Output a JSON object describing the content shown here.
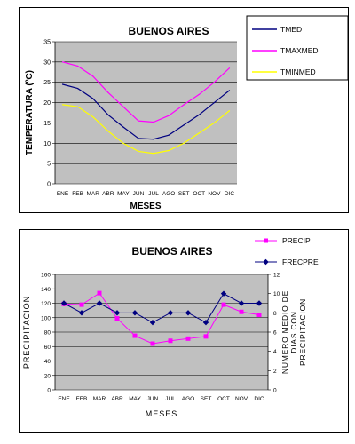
{
  "chart_data": [
    {
      "type": "line",
      "title": "BUENOS AIRES",
      "xlabel": "MESES",
      "ylabel": "TEMPERATURA (ºC)",
      "categories": [
        "ENE",
        "FEB",
        "MAR",
        "ABR",
        "MAY",
        "JUN",
        "JUL",
        "AGO",
        "SET",
        "OCT",
        "NOV",
        "DIC"
      ],
      "ylim": [
        0,
        35
      ],
      "yticks": [
        "0",
        "5",
        "10",
        "15",
        "20",
        "25",
        "30",
        "35"
      ],
      "grid": true,
      "legend_position": "right-top",
      "series": [
        {
          "name": "TMED",
          "color": "#000080",
          "values": [
            24.5,
            23.5,
            21,
            17,
            14,
            11.2,
            11,
            12,
            14.5,
            17,
            20,
            23
          ]
        },
        {
          "name": "TMAXMED",
          "color": "#ff00ff",
          "values": [
            30,
            29,
            26.5,
            22.5,
            19,
            15.5,
            15.2,
            16.8,
            19.5,
            22,
            25,
            28.5
          ]
        },
        {
          "name": "TMINMED",
          "color": "#ffff00",
          "values": [
            19.5,
            19,
            16.5,
            13,
            10,
            8,
            7.5,
            8.2,
            10,
            12.5,
            15,
            18
          ]
        }
      ]
    },
    {
      "type": "line",
      "title": "BUENOS AIRES",
      "xlabel": "MESES",
      "ylabel": "PRECIPITACION",
      "y2label": "NUMERO MEDIO DE DIAS CON PRECIPITACION",
      "y2label_lines": [
        "NUMERO MEDIO DE",
        "DIAS CON",
        "PRECIPITACION"
      ],
      "categories": [
        "ENE",
        "FEB",
        "MAR",
        "ABR",
        "MAY",
        "JUN",
        "JUL",
        "AGO",
        "SET",
        "OCT",
        "NOV",
        "DIC"
      ],
      "ylim": [
        0,
        160
      ],
      "yticks": [
        "0",
        "20",
        "40",
        "60",
        "80",
        "100",
        "120",
        "140",
        "160"
      ],
      "y2lim": [
        0,
        12
      ],
      "y2ticks": [
        "0",
        "2",
        "4",
        "6",
        "8",
        "10",
        "12"
      ],
      "grid": true,
      "legend_position": "right-top",
      "series": [
        {
          "name": "PRECIP",
          "color": "#ff00ff",
          "marker": "square",
          "axis": "left",
          "values": [
            119,
            118,
            134,
            99,
            75,
            64,
            68,
            71,
            74,
            118,
            108,
            104
          ]
        },
        {
          "name": "FRECPRE",
          "color": "#000080",
          "marker": "diamond",
          "axis": "right",
          "values": [
            9,
            8,
            9,
            8,
            8,
            7,
            8,
            8,
            7,
            10,
            9,
            9
          ]
        }
      ]
    }
  ]
}
